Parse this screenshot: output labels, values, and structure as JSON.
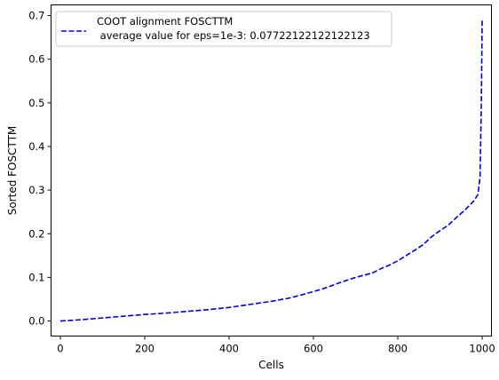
{
  "chart_data": {
    "type": "line",
    "title": "",
    "xlabel": "Cells",
    "ylabel": "Sorted FOSCTTM",
    "xlim": [
      -22,
      1022
    ],
    "ylim": [
      -0.0345,
      0.7245
    ],
    "xticks": [
      0,
      200,
      400,
      600,
      800,
      1000
    ],
    "xtick_labels": [
      "0",
      "200",
      "400",
      "600",
      "800",
      "1000"
    ],
    "yticks": [
      0.0,
      0.1,
      0.2,
      0.3,
      0.4,
      0.5,
      0.6,
      0.7
    ],
    "ytick_labels": [
      "0.0",
      "0.1",
      "0.2",
      "0.3",
      "0.4",
      "0.5",
      "0.6",
      "0.7"
    ],
    "grid": false,
    "legend": {
      "position": "top-left",
      "line1": "COOT alignment FOSCTTM",
      "line2": " average value for eps=1e-3: 0.07722122122122123"
    },
    "series": [
      {
        "name": "COOT alignment FOSCTTM",
        "color": "#0000dd",
        "style": "dashed",
        "x": [
          0,
          50,
          100,
          150,
          200,
          250,
          300,
          350,
          400,
          450,
          500,
          540,
          580,
          620,
          660,
          700,
          740,
          760,
          780,
          800,
          820,
          840,
          860,
          880,
          900,
          920,
          940,
          960,
          980,
          990,
          995,
          998,
          1000
        ],
        "y": [
          0.0,
          0.003,
          0.007,
          0.011,
          0.015,
          0.018,
          0.022,
          0.026,
          0.031,
          0.038,
          0.045,
          0.052,
          0.062,
          0.073,
          0.087,
          0.1,
          0.11,
          0.12,
          0.128,
          0.138,
          0.15,
          0.162,
          0.175,
          0.193,
          0.207,
          0.22,
          0.238,
          0.255,
          0.275,
          0.29,
          0.33,
          0.5,
          0.69
        ]
      }
    ]
  }
}
